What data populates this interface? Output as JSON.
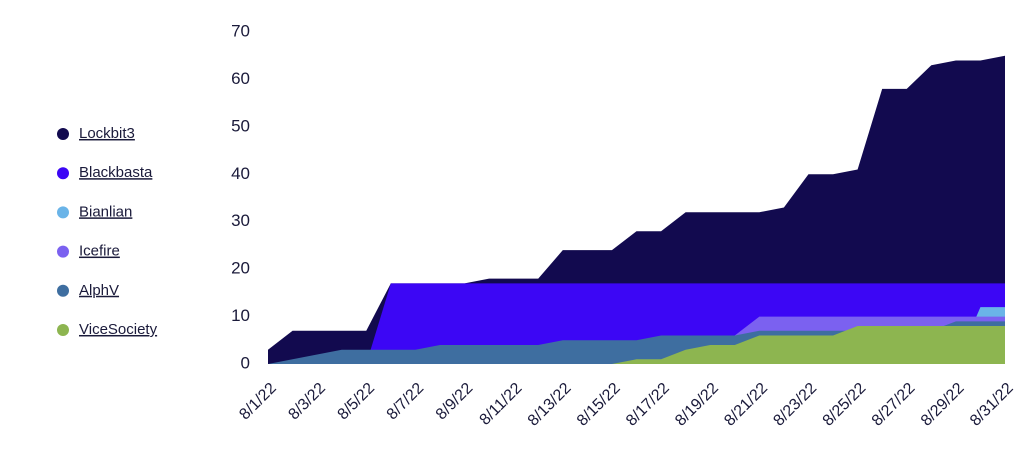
{
  "chart_data": {
    "type": "area",
    "categories": [
      "8/1/22",
      null,
      "8/3/22",
      null,
      "8/5/22",
      null,
      "8/7/22",
      null,
      "8/9/22",
      null,
      "8/11/22",
      null,
      "8/13/22",
      null,
      "8/15/22",
      null,
      "8/17/22",
      null,
      "8/19/22",
      null,
      "8/21/22",
      null,
      "8/23/22",
      null,
      "8/25/22",
      null,
      "8/27/22",
      null,
      "8/29/22",
      null,
      "8/31/22"
    ],
    "series": [
      {
        "name": "Lockbit3",
        "color": "#120a4f",
        "values": [
          3,
          7,
          7,
          7,
          7,
          17,
          17,
          17,
          17,
          18,
          18,
          18,
          24,
          24,
          24,
          28,
          28,
          32,
          32,
          32,
          32,
          33,
          40,
          40,
          41,
          58,
          58,
          63,
          64,
          64,
          65
        ]
      },
      {
        "name": "Blackbasta",
        "color": "#3c06f5",
        "values": [
          0,
          0,
          0,
          0,
          0,
          17,
          17,
          17,
          17,
          17,
          17,
          17,
          17,
          17,
          17,
          17,
          17,
          17,
          17,
          17,
          17,
          17,
          17,
          17,
          17,
          17,
          17,
          17,
          17,
          17,
          17
        ]
      },
      {
        "name": "Bianlian",
        "color": "#6ab4e8",
        "values": [
          0,
          0,
          0,
          0,
          0,
          0,
          0,
          0,
          0,
          0,
          0,
          0,
          0,
          0,
          0,
          0,
          0,
          0,
          0,
          0,
          0,
          0,
          0,
          0,
          0,
          0,
          0,
          0,
          0,
          12,
          12
        ]
      },
      {
        "name": "Icefire",
        "color": "#7b61f0",
        "values": [
          0,
          0,
          0,
          0,
          0,
          0,
          0,
          0,
          0,
          0,
          0,
          0,
          0,
          0,
          0,
          0,
          0,
          0,
          0,
          6,
          10,
          10,
          10,
          10,
          10,
          10,
          10,
          10,
          10,
          10,
          10
        ]
      },
      {
        "name": "AlphV",
        "color": "#3e6ea0",
        "values": [
          0,
          1,
          2,
          3,
          3,
          3,
          3,
          4,
          4,
          4,
          4,
          4,
          5,
          5,
          5,
          5,
          6,
          6,
          6,
          6,
          7,
          7,
          7,
          7,
          7,
          7,
          7,
          7,
          9,
          9,
          9
        ]
      },
      {
        "name": "ViceSociety",
        "color": "#8db550",
        "values": [
          0,
          0,
          0,
          0,
          0,
          0,
          0,
          0,
          0,
          0,
          0,
          0,
          0,
          0,
          0,
          1,
          1,
          3,
          4,
          4,
          6,
          6,
          6,
          6,
          8,
          8,
          8,
          8,
          8,
          8,
          8
        ]
      }
    ],
    "ylim": [
      0,
      70
    ],
    "yticks": [
      0,
      10,
      20,
      30,
      40,
      50,
      60,
      70
    ],
    "grid": false,
    "legend": "left"
  }
}
